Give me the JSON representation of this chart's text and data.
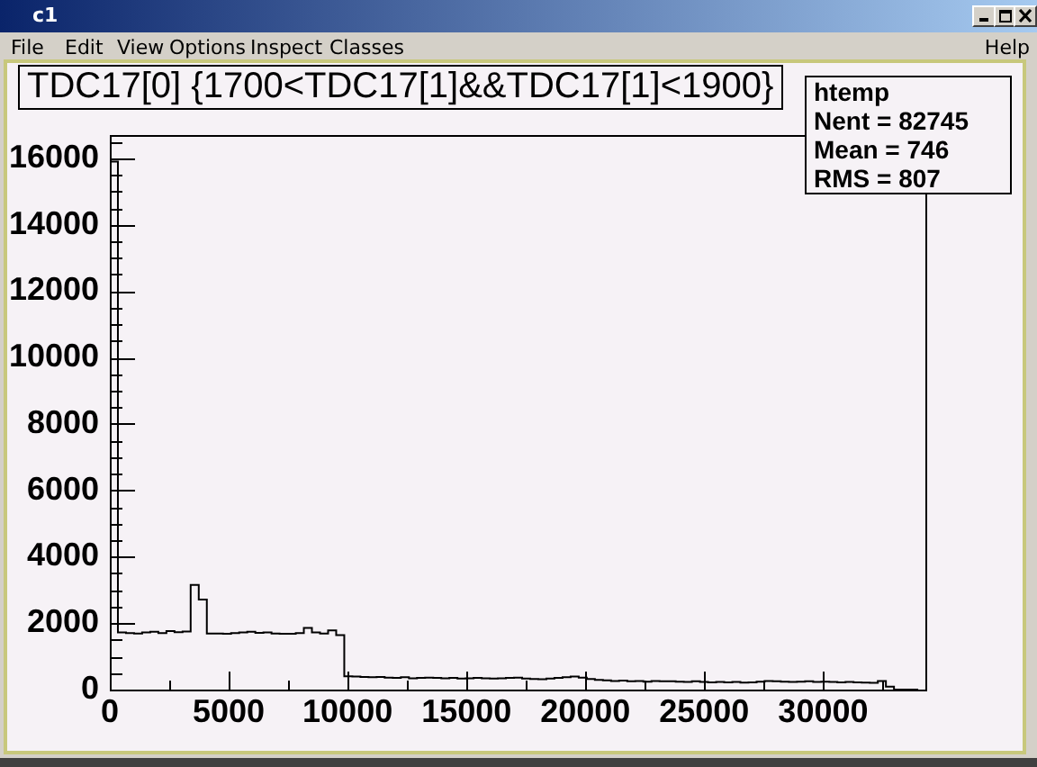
{
  "chart_data": {
    "type": "histogram",
    "title": "TDC17[0] {1700<TDC17[1]&&TDC17[1]<1900}",
    "bins": [
      0,
      340,
      680,
      1020,
      1360,
      1700,
      2040,
      2380,
      2720,
      3060,
      3400,
      3740,
      4080,
      4420,
      4760,
      5100,
      5440,
      5780,
      6120,
      6460,
      6800,
      7140,
      7480,
      7820,
      8160,
      8500,
      8840,
      9180,
      9520,
      9860,
      10200,
      10540,
      10880,
      11220,
      11560,
      11900,
      12240,
      12580,
      12920,
      13260,
      13600,
      13940,
      14280,
      14620,
      14960,
      15300,
      15640,
      15980,
      16320,
      16660,
      17000,
      17340,
      17680,
      18020,
      18360,
      18700,
      19040,
      19380,
      19720,
      20060,
      20400,
      20740,
      21080,
      21420,
      21760,
      22100,
      22440,
      22780,
      23120,
      23460,
      23800,
      24140,
      24480,
      24820,
      25160,
      25500,
      25840,
      26180,
      26520,
      26860,
      27200,
      27540,
      27880,
      28220,
      28560,
      28900,
      29240,
      29580,
      29920,
      30260,
      30600,
      30940,
      31280,
      31620,
      31960,
      32300,
      32640,
      32980,
      33320,
      33660,
      34000
    ],
    "values": [
      15900,
      1720,
      1700,
      1690,
      1720,
      1740,
      1700,
      1760,
      1730,
      1750,
      3150,
      2710,
      1690,
      1690,
      1680,
      1700,
      1720,
      1740,
      1710,
      1720,
      1690,
      1680,
      1680,
      1700,
      1860,
      1720,
      1690,
      1780,
      1640,
      400,
      390,
      380,
      370,
      380,
      360,
      350,
      370,
      340,
      350,
      360,
      350,
      340,
      350,
      330,
      340,
      350,
      340,
      330,
      340,
      350,
      360,
      330,
      320,
      310,
      330,
      350,
      370,
      390,
      360,
      320,
      290,
      280,
      260,
      270,
      250,
      260,
      240,
      260,
      250,
      250,
      240,
      230,
      250,
      230,
      220,
      230,
      220,
      230,
      210,
      220,
      240,
      260,
      250,
      240,
      230,
      240,
      250,
      230,
      240,
      230,
      220,
      230,
      220,
      210,
      200,
      260,
      90,
      0,
      0,
      0
    ],
    "color": "#000000",
    "xlim": [
      0,
      34300
    ],
    "xticks": [
      0,
      {
        "value": 2500,
        "label": null
      },
      5000,
      {
        "value": 7500,
        "label": null
      },
      10000,
      {
        "value": 12500,
        "label": null
      },
      15000,
      {
        "value": 17500,
        "label": null
      },
      20000,
      {
        "value": 22500,
        "label": null
      },
      25000,
      {
        "value": 27500,
        "label": null
      },
      30000,
      {
        "value": 32500,
        "label": null
      }
    ],
    "ylim": [
      0,
      16700
    ],
    "yticks": [
      0,
      {
        "value": 500,
        "label": null
      },
      {
        "value": 1000,
        "label": null
      },
      {
        "value": 1500,
        "label": null
      },
      2000,
      {
        "value": 2500,
        "label": null
      },
      {
        "value": 3000,
        "label": null
      },
      {
        "value": 3500,
        "label": null
      },
      4000,
      {
        "value": 4500,
        "label": null
      },
      {
        "value": 5000,
        "label": null
      },
      {
        "value": 5500,
        "label": null
      },
      6000,
      {
        "value": 6500,
        "label": null
      },
      {
        "value": 7000,
        "label": null
      },
      {
        "value": 7500,
        "label": null
      },
      8000,
      {
        "value": 8500,
        "label": null
      },
      {
        "value": 9000,
        "label": null
      },
      {
        "value": 9500,
        "label": null
      },
      10000,
      {
        "value": 10500,
        "label": null
      },
      {
        "value": 11000,
        "label": null
      },
      {
        "value": 11500,
        "label": null
      },
      12000,
      {
        "value": 12500,
        "label": null
      },
      {
        "value": 13000,
        "label": null
      },
      {
        "value": 13500,
        "label": null
      },
      14000,
      {
        "value": 14500,
        "label": null
      },
      {
        "value": 15000,
        "label": null
      },
      {
        "value": 15500,
        "label": null
      },
      16000,
      {
        "value": 16500,
        "label": null
      }
    ],
    "annotations": [
      "c1",
      "File",
      "Edit",
      "View",
      "Options",
      "Inspect",
      "Classes",
      "Help",
      "htemp",
      "Nent = 82745",
      "Mean = 746",
      "RMS = 807"
    ]
  }
}
